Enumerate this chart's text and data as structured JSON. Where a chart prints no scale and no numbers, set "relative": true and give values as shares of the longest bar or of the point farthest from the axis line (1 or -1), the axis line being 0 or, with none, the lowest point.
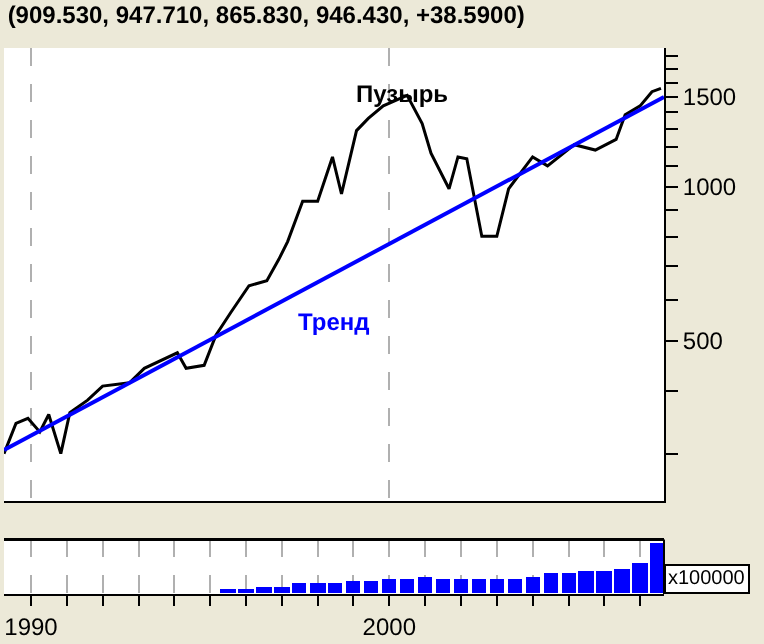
{
  "chart_data": [
    {
      "type": "line",
      "title": "(909.530, 947.710, 865.830, 946.430, +38.5900)",
      "log": "y",
      "grid": "x",
      "tick_labels": "y",
      "legend": false,
      "xlim": [
        "1989-04",
        "2007-09"
      ],
      "xticks": [
        {
          "value": "1990",
          "label": null
        },
        {
          "value": "2000",
          "label": null
        }
      ],
      "ylim": [
        243,
        1870
      ],
      "yticks": [
        {
          "value": 300,
          "label": null
        },
        {
          "value": 400,
          "label": null
        },
        500,
        {
          "value": 600,
          "label": null
        },
        {
          "value": 700,
          "label": null
        },
        {
          "value": 800,
          "label": null
        },
        {
          "value": 900,
          "label": null
        },
        1000,
        {
          "value": 1100,
          "label": null
        },
        {
          "value": 1200,
          "label": null
        },
        {
          "value": 1300,
          "label": null
        },
        {
          "value": 1400,
          "label": null
        },
        1500,
        {
          "value": 1600,
          "label": null
        },
        {
          "value": 1700,
          "label": null
        },
        {
          "value": 1800,
          "label": null
        }
      ],
      "series": [
        {
          "color": "#000000",
          "x": [
            "1989-04",
            "1989-08",
            "1989-12",
            "1990-04",
            "1990-07",
            "1990-11",
            "1991-02",
            "1991-08",
            "1992-01",
            "1992-10",
            "1993-03",
            "1994-02",
            "1994-05",
            "1994-11",
            "1995-03",
            "1995-08",
            "1996-02",
            "1996-08",
            "1996-12",
            "1997-03",
            "1997-08",
            "1998-01",
            "1998-06",
            "1998-09",
            "1999-02",
            "1999-06",
            "1999-11",
            "2000-03",
            "2000-07",
            "2000-12",
            "2001-03",
            "2001-09",
            "2001-12",
            "2002-03",
            "2002-08",
            "2003-01",
            "2003-05",
            "2004-01",
            "2004-06",
            "2005-03",
            "2005-10",
            "2006-05",
            "2006-08",
            "2007-01",
            "2007-05",
            "2007-08"
          ],
          "values": [
            301,
            345,
            353,
            332,
            359,
            301,
            362,
            383,
            408,
            414,
            442,
            474,
            442,
            448,
            513,
            569,
            641,
            656,
            722,
            782,
            938,
            938,
            1145,
            969,
            1289,
            1362,
            1441,
            1476,
            1511,
            1331,
            1164,
            992,
            1145,
            1136,
            801,
            801,
            992,
            1145,
            1100,
            1210,
            1181,
            1239,
            1384,
            1441,
            1536,
            1559
          ]
        },
        {
          "name": "Тренд",
          "color": "#0000ff",
          "x": [
            "1989-04",
            "2007-09"
          ],
          "values": [
            306,
            1500
          ]
        }
      ],
      "annotations": [
        "Пузырь"
      ]
    },
    {
      "type": "bar",
      "relative": true,
      "tick_labels": "x",
      "grid": "x",
      "legend": false,
      "xlim": [
        "1989-04",
        "2007-09"
      ],
      "xticks": [
        {
          "value": "1990",
          "label": "1990"
        },
        {
          "value": "1991",
          "label": null
        },
        {
          "value": "1992",
          "label": null
        },
        {
          "value": "1993",
          "label": null
        },
        {
          "value": "1994",
          "label": null
        },
        {
          "value": "1995",
          "label": null
        },
        {
          "value": "1996",
          "label": null
        },
        {
          "value": "1997",
          "label": null
        },
        {
          "value": "1998",
          "label": null
        },
        {
          "value": "1999",
          "label": null
        },
        {
          "value": "2000",
          "label": "2000"
        },
        {
          "value": "2001",
          "label": null
        },
        {
          "value": "2002",
          "label": null
        },
        {
          "value": "2003",
          "label": null
        },
        {
          "value": "2004",
          "label": null
        },
        {
          "value": "2005",
          "label": null
        },
        {
          "value": "2006",
          "label": null
        },
        {
          "value": "2007",
          "label": null
        }
      ],
      "x": [
        "1995-07",
        "1996-01",
        "1996-07",
        "1997-01",
        "1997-07",
        "1998-01",
        "1998-07",
        "1999-01",
        "1999-07",
        "2000-01",
        "2000-07",
        "2001-01",
        "2001-07",
        "2002-01",
        "2002-07",
        "2003-01",
        "2003-07",
        "2004-01",
        "2004-07",
        "2005-01",
        "2005-07",
        "2006-01",
        "2006-07",
        "2007-01",
        "2007-07"
      ],
      "series": [
        {
          "color": "#0000ff",
          "values": [
            0.1,
            0.1,
            0.15,
            0.15,
            0.2,
            0.2,
            0.2,
            0.25,
            0.25,
            0.3,
            0.3,
            0.35,
            0.3,
            0.3,
            0.3,
            0.3,
            0.3,
            0.35,
            0.4,
            0.4,
            0.45,
            0.45,
            0.5,
            0.6,
            1.0
          ]
        }
      ],
      "annotations": [
        "x100000"
      ]
    }
  ]
}
